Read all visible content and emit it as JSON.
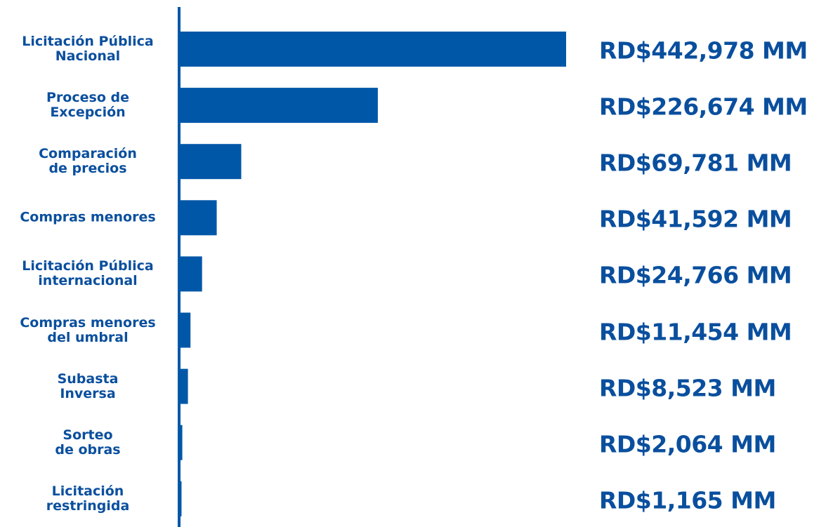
{
  "chart_data": {
    "type": "bar",
    "orientation": "horizontal",
    "color": "#0057a8",
    "categories": [
      "Licitación Pública\nNacional",
      "Proceso de\nExcepción",
      "Comparación\nde precios",
      "Compras menores",
      "Licitación Pública\ninternacional",
      "Compras menores\ndel umbral",
      "Subasta\nInversa",
      "Sorteo\nde obras",
      "Licitación\nrestringida"
    ],
    "values": [
      442978,
      226674,
      69781,
      41592,
      24766,
      11454,
      8523,
      2064,
      1165
    ],
    "value_labels": [
      "RD$442,978 MM",
      "RD$226,674 MM",
      "RD$69,781 MM",
      "RD$41,592 MM",
      "RD$24,766 MM",
      "RD$11,454 MM",
      "RD$8,523 MM",
      "RD$2,064 MM",
      "RD$1,165 MM"
    ]
  }
}
